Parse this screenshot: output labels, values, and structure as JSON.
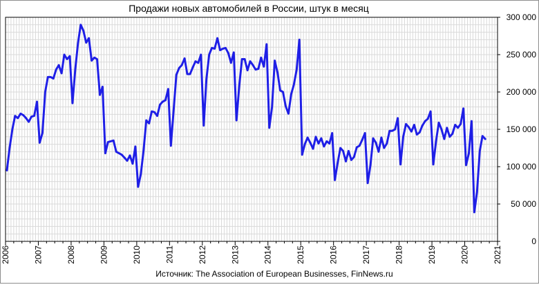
{
  "chart_data": {
    "type": "line",
    "title": "Продажи новых автомобилей в России, штук в месяц",
    "source": "Источник: The Association of European Businesses, FinNews.ru",
    "xlabel": "",
    "ylabel": "",
    "xlim": [
      2006,
      2021
    ],
    "ylim": [
      0,
      300000
    ],
    "x_ticks": [
      "2006",
      "2007",
      "2008",
      "2009",
      "2010",
      "2011",
      "2012",
      "2013",
      "2014",
      "2015",
      "2016",
      "2017",
      "2018",
      "2019",
      "2020",
      "2021"
    ],
    "y_ticks": [
      "0",
      "50 000",
      "100 000",
      "150 000",
      "200 000",
      "250 000",
      "300 000"
    ],
    "y_tick_values": [
      0,
      50000,
      100000,
      150000,
      200000,
      250000,
      300000
    ],
    "grid": true,
    "legend": "none",
    "series": [
      {
        "color": "#1f1fe6",
        "values": [
          95000,
          125000,
          150000,
          168000,
          165000,
          171000,
          169000,
          165000,
          160000,
          167000,
          168000,
          187000,
          132000,
          145000,
          200000,
          220000,
          220000,
          218000,
          230000,
          236000,
          225000,
          250000,
          244000,
          248000,
          185000,
          230000,
          265000,
          290000,
          282000,
          266000,
          272000,
          242000,
          246000,
          244000,
          196000,
          207000,
          118000,
          133000,
          134000,
          135000,
          120000,
          118000,
          116000,
          112000,
          108000,
          115000,
          104000,
          127000,
          73000,
          90000,
          122000,
          162000,
          158000,
          174000,
          173000,
          168000,
          183000,
          187000,
          189000,
          204000,
          128000,
          176000,
          223000,
          232000,
          236000,
          245000,
          224000,
          224000,
          233000,
          241000,
          239000,
          250000,
          155000,
          217000,
          250000,
          259000,
          258000,
          272000,
          256000,
          258000,
          259000,
          252000,
          239000,
          253000,
          162000,
          208000,
          244000,
          244000,
          229000,
          241000,
          236000,
          230000,
          231000,
          246000,
          234000,
          264000,
          152000,
          180000,
          242000,
          226000,
          202000,
          200000,
          181000,
          171000,
          197000,
          210000,
          230000,
          270000,
          116000,
          130000,
          139000,
          132000,
          124000,
          140000,
          131000,
          138000,
          127000,
          134000,
          131000,
          145000,
          82000,
          105000,
          125000,
          121000,
          107000,
          121000,
          109000,
          113000,
          126000,
          128000,
          136000,
          145000,
          78000,
          102000,
          138000,
          132000,
          120000,
          139000,
          125000,
          131000,
          148000,
          148000,
          150000,
          165000,
          103000,
          140000,
          157000,
          153000,
          147000,
          156000,
          143000,
          146000,
          155000,
          161000,
          164000,
          174000,
          103000,
          134000,
          159000,
          150000,
          137000,
          152000,
          140000,
          144000,
          156000,
          152000,
          157000,
          178000,
          102000,
          118000,
          161000,
          39000,
          66000,
          121000,
          141000,
          137000
        ]
      }
    ]
  }
}
